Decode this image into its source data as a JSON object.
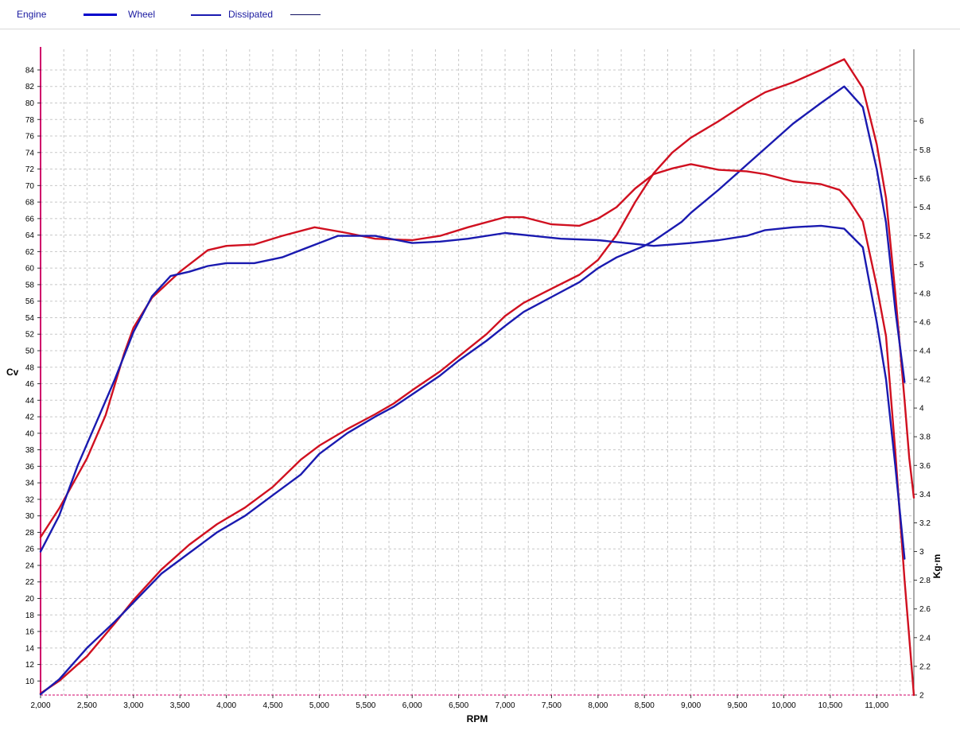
{
  "legend": {
    "items": [
      {
        "label": "Engine",
        "color": "#2a2ab0"
      },
      {
        "label": "Wheel",
        "color": "#0000cc"
      },
      {
        "label": "Dissipated",
        "color": "#1010a0"
      }
    ]
  },
  "colors": {
    "red_series": "#d01020",
    "blue_series": "#1a1ab0",
    "left_axis": "#d0006a",
    "grid": "#c8c8c8"
  },
  "chart_data": {
    "type": "line",
    "xlabel": "RPM",
    "ylabel_left": "Cv",
    "ylabel_right": "Kg·m",
    "xlim": [
      2000,
      11400
    ],
    "ylim_left": [
      8.3,
      86.5
    ],
    "ylim_right": [
      2,
      6.5
    ],
    "grid": true,
    "x_ticks": [
      2000,
      2500,
      3000,
      3500,
      4000,
      4500,
      5000,
      5500,
      6000,
      6500,
      7000,
      7500,
      8000,
      8500,
      9000,
      9500,
      10000,
      10500,
      11000
    ],
    "x_tick_labels": [
      "2,000",
      "2,500",
      "3,000",
      "3,500",
      "4,000",
      "4,500",
      "5,000",
      "5,500",
      "6,000",
      "6,500",
      "7,000",
      "7,500",
      "8,000",
      "8,500",
      "9,000",
      "9,500",
      "10,000",
      "10,500",
      "11,000"
    ],
    "y_left_ticks": [
      10,
      12,
      14,
      16,
      18,
      20,
      22,
      24,
      26,
      28,
      30,
      32,
      34,
      36,
      38,
      40,
      42,
      44,
      46,
      48,
      50,
      52,
      54,
      56,
      58,
      60,
      62,
      64,
      66,
      68,
      70,
      72,
      74,
      76,
      78,
      80,
      82,
      84
    ],
    "y_right_ticks": [
      2,
      2.2,
      2.4,
      2.6,
      2.8,
      3,
      3.2,
      3.4,
      3.6,
      3.8,
      4,
      4.2,
      4.4,
      4.6,
      4.8,
      5,
      5.2,
      5.4,
      5.6,
      5.8,
      6
    ],
    "y_right_tick_labels": [
      "2",
      "2.2",
      "2.4",
      "2.6",
      "2.8",
      "3",
      "3.2",
      "3.4",
      "3.6",
      "3.8",
      "4",
      "4.2",
      "4.4",
      "4.6",
      "4.8",
      "5",
      "5.2",
      "5.4",
      "5.6",
      "5.8",
      "6"
    ],
    "series": [
      {
        "axis": "left",
        "color": "#d01020",
        "points": [
          [
            2000,
            8.5
          ],
          [
            2200,
            10
          ],
          [
            2500,
            13
          ],
          [
            2800,
            17
          ],
          [
            3000,
            19.8
          ],
          [
            3300,
            23.5
          ],
          [
            3600,
            26.5
          ],
          [
            3900,
            29
          ],
          [
            4200,
            31
          ],
          [
            4500,
            33.5
          ],
          [
            4800,
            36.8
          ],
          [
            5000,
            38.5
          ],
          [
            5300,
            40.5
          ],
          [
            5600,
            42.3
          ],
          [
            5800,
            43.6
          ],
          [
            6000,
            45.2
          ],
          [
            6300,
            47.5
          ],
          [
            6500,
            49.3
          ],
          [
            6800,
            52
          ],
          [
            7000,
            54.2
          ],
          [
            7200,
            55.8
          ],
          [
            7500,
            57.5
          ],
          [
            7800,
            59.2
          ],
          [
            8000,
            61
          ],
          [
            8200,
            64
          ],
          [
            8400,
            68
          ],
          [
            8600,
            71.5
          ],
          [
            8800,
            74
          ],
          [
            9000,
            75.8
          ],
          [
            9300,
            77.8
          ],
          [
            9600,
            80
          ],
          [
            9800,
            81.3
          ],
          [
            10100,
            82.5
          ],
          [
            10400,
            84
          ],
          [
            10650,
            85.3
          ],
          [
            10850,
            81.8
          ],
          [
            11000,
            75
          ],
          [
            11100,
            68.5
          ],
          [
            11200,
            57
          ],
          [
            11300,
            44
          ],
          [
            11350,
            37
          ],
          [
            11400,
            32.2
          ]
        ]
      },
      {
        "axis": "left",
        "color": "#1a1ab0",
        "points": [
          [
            2000,
            8.4
          ],
          [
            2200,
            10.2
          ],
          [
            2500,
            14
          ],
          [
            2800,
            17.2
          ],
          [
            3000,
            19.5
          ],
          [
            3300,
            23
          ],
          [
            3600,
            25.5
          ],
          [
            3900,
            28
          ],
          [
            4200,
            30
          ],
          [
            4500,
            32.5
          ],
          [
            4800,
            35
          ],
          [
            5000,
            37.5
          ],
          [
            5300,
            40
          ],
          [
            5600,
            42
          ],
          [
            5800,
            43.2
          ],
          [
            6000,
            44.7
          ],
          [
            6300,
            47
          ],
          [
            6500,
            48.8
          ],
          [
            6800,
            51.2
          ],
          [
            7000,
            53
          ],
          [
            7200,
            54.7
          ],
          [
            7500,
            56.5
          ],
          [
            7800,
            58.3
          ],
          [
            8000,
            60
          ],
          [
            8200,
            61.3
          ],
          [
            8500,
            62.7
          ],
          [
            8600,
            63.3
          ],
          [
            8900,
            65.6
          ],
          [
            9000,
            66.7
          ],
          [
            9300,
            69.5
          ],
          [
            9600,
            72.5
          ],
          [
            9800,
            74.5
          ],
          [
            10100,
            77.5
          ],
          [
            10400,
            80
          ],
          [
            10650,
            82
          ],
          [
            10850,
            79.5
          ],
          [
            11000,
            72
          ],
          [
            11100,
            65.5
          ],
          [
            11200,
            55
          ],
          [
            11300,
            46.2
          ]
        ]
      },
      {
        "axis": "right",
        "color": "#d01020",
        "points": [
          [
            2000,
            3.1
          ],
          [
            2200,
            3.3
          ],
          [
            2500,
            3.65
          ],
          [
            2700,
            3.95
          ],
          [
            2900,
            4.38
          ],
          [
            3000,
            4.56
          ],
          [
            3200,
            4.77
          ],
          [
            3500,
            4.95
          ],
          [
            3800,
            5.1
          ],
          [
            4000,
            5.13
          ],
          [
            4300,
            5.14
          ],
          [
            4600,
            5.2
          ],
          [
            4950,
            5.26
          ],
          [
            5300,
            5.22
          ],
          [
            5600,
            5.18
          ],
          [
            6000,
            5.17
          ],
          [
            6300,
            5.2
          ],
          [
            6600,
            5.26
          ],
          [
            7000,
            5.33
          ],
          [
            7200,
            5.33
          ],
          [
            7500,
            5.28
          ],
          [
            7800,
            5.27
          ],
          [
            8000,
            5.32
          ],
          [
            8200,
            5.4
          ],
          [
            8400,
            5.53
          ],
          [
            8600,
            5.63
          ],
          [
            8800,
            5.67
          ],
          [
            9000,
            5.7
          ],
          [
            9300,
            5.66
          ],
          [
            9600,
            5.65
          ],
          [
            9800,
            5.63
          ],
          [
            10100,
            5.58
          ],
          [
            10400,
            5.56
          ],
          [
            10600,
            5.52
          ],
          [
            10700,
            5.45
          ],
          [
            10850,
            5.3
          ],
          [
            11000,
            4.85
          ],
          [
            11100,
            4.5
          ],
          [
            11200,
            3.7
          ],
          [
            11300,
            2.8
          ],
          [
            11350,
            2.4
          ],
          [
            11400,
            2
          ]
        ]
      },
      {
        "axis": "right",
        "color": "#1a1ab0",
        "points": [
          [
            2000,
            3
          ],
          [
            2200,
            3.25
          ],
          [
            2400,
            3.6
          ],
          [
            2600,
            3.9
          ],
          [
            2800,
            4.2
          ],
          [
            3000,
            4.53
          ],
          [
            3200,
            4.78
          ],
          [
            3400,
            4.92
          ],
          [
            3600,
            4.95
          ],
          [
            3800,
            4.99
          ],
          [
            4000,
            5.01
          ],
          [
            4300,
            5.01
          ],
          [
            4600,
            5.05
          ],
          [
            5000,
            5.15
          ],
          [
            5200,
            5.2
          ],
          [
            5600,
            5.2
          ],
          [
            6000,
            5.15
          ],
          [
            6300,
            5.16
          ],
          [
            6600,
            5.18
          ],
          [
            7000,
            5.22
          ],
          [
            7300,
            5.2
          ],
          [
            7600,
            5.18
          ],
          [
            8000,
            5.17
          ],
          [
            8300,
            5.15
          ],
          [
            8600,
            5.13
          ],
          [
            8800,
            5.14
          ],
          [
            9000,
            5.15
          ],
          [
            9300,
            5.17
          ],
          [
            9600,
            5.2
          ],
          [
            9800,
            5.24
          ],
          [
            10100,
            5.26
          ],
          [
            10400,
            5.27
          ],
          [
            10650,
            5.25
          ],
          [
            10850,
            5.12
          ],
          [
            11000,
            4.6
          ],
          [
            11100,
            4.2
          ],
          [
            11200,
            3.6
          ],
          [
            11300,
            2.95
          ]
        ]
      }
    ]
  }
}
